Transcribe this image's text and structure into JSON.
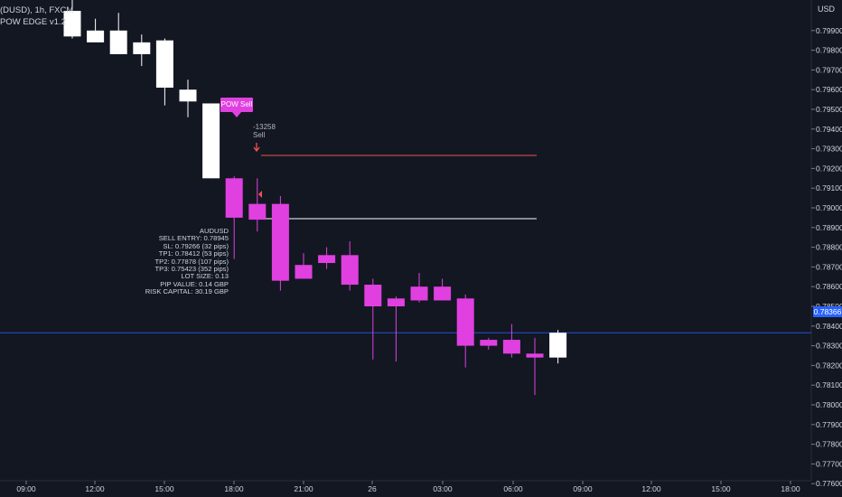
{
  "header": {
    "symbol_line": "(DUSD), 1h, FXCM",
    "indicator_line": "POW EDGE v1.2"
  },
  "currency_label": "USD",
  "price_axis": {
    "ticks": [
      "0.79900",
      "0.79800",
      "0.79700",
      "0.79600",
      "0.79500",
      "0.79400",
      "0.79300",
      "0.79200",
      "0.79100",
      "0.79000",
      "0.78900",
      "0.78800",
      "0.78700",
      "0.78600",
      "0.78500",
      "0.78400",
      "0.78300",
      "0.78200",
      "0.78100",
      "0.78000",
      "0.77900",
      "0.77800",
      "0.77700",
      "0.77600"
    ],
    "current_price": "0.78366"
  },
  "time_axis": {
    "labels": [
      "09:00",
      "12:00",
      "15:00",
      "18:00",
      "21:00",
      "26",
      "03:00",
      "06:00",
      "09:00",
      "12:00",
      "15:00",
      "18:00"
    ]
  },
  "signal": {
    "label": "POW Sell",
    "id_text": "-13258",
    "side_text": "Sell"
  },
  "info_box": [
    "AUDUSD",
    "SELL ENTRY: 0.78945",
    "SL: 0.79266 (32 pips)",
    "TP1: 0.78412 (53 pips)",
    "TP2: 0.77878 (107 pips)",
    "TP3: 0.75423 (352 pips)",
    "LOT SIZE: 0.13",
    "PIP VALUE: 0.14 GBP",
    "RISK CAPITAL: 30.19 GBP"
  ],
  "colors": {
    "background": "#131722",
    "bear_candle": "#e040e0",
    "bull_candle": "#ffffff",
    "price_line": "#2962ff",
    "sl_line": "#ef5350",
    "entry_line": "#ffffff",
    "text": "#d1d4dc"
  },
  "chart_data": {
    "type": "candlestick",
    "y_range": [
      0.7753,
      0.8002
    ],
    "x_labels": [
      "09:00",
      "12:00",
      "15:00",
      "18:00",
      "21:00",
      "26",
      "03:00",
      "06:00",
      "09:00",
      "12:00",
      "15:00",
      "18:00"
    ],
    "candles": [
      {
        "o": 0.8,
        "h": 0.801,
        "l": 0.7986,
        "c": 0.7987,
        "style": "bull"
      },
      {
        "o": 0.799,
        "h": 0.7996,
        "l": 0.7986,
        "c": 0.7984,
        "style": "bull"
      },
      {
        "o": 0.799,
        "h": 0.7999,
        "l": 0.7978,
        "c": 0.7978,
        "style": "bull"
      },
      {
        "o": 0.7984,
        "h": 0.7988,
        "l": 0.7972,
        "c": 0.7978,
        "style": "bull"
      },
      {
        "o": 0.7985,
        "h": 0.7986,
        "l": 0.7952,
        "c": 0.7961,
        "style": "bull"
      },
      {
        "o": 0.796,
        "h": 0.7965,
        "l": 0.7946,
        "c": 0.7954,
        "style": "bull"
      },
      {
        "o": 0.7953,
        "h": 0.7953,
        "l": 0.7915,
        "c": 0.7915,
        "style": "bull"
      },
      {
        "o": 0.7915,
        "h": 0.7916,
        "l": 0.7874,
        "c": 0.7895,
        "style": "bear"
      },
      {
        "o": 0.7902,
        "h": 0.7915,
        "l": 0.7888,
        "c": 0.7894,
        "style": "bear"
      },
      {
        "o": 0.7902,
        "h": 0.7906,
        "l": 0.7858,
        "c": 0.7863,
        "style": "bear"
      },
      {
        "o": 0.7871,
        "h": 0.7877,
        "l": 0.7864,
        "c": 0.7864,
        "style": "bear"
      },
      {
        "o": 0.7876,
        "h": 0.788,
        "l": 0.7869,
        "c": 0.7872,
        "style": "bear"
      },
      {
        "o": 0.7876,
        "h": 0.7883,
        "l": 0.7858,
        "c": 0.7861,
        "style": "bear"
      },
      {
        "o": 0.7861,
        "h": 0.7864,
        "l": 0.7823,
        "c": 0.785,
        "style": "bear"
      },
      {
        "o": 0.7854,
        "h": 0.7855,
        "l": 0.7822,
        "c": 0.785,
        "style": "bear"
      },
      {
        "o": 0.7853,
        "h": 0.7867,
        "l": 0.7852,
        "c": 0.786,
        "style": "bear"
      },
      {
        "o": 0.786,
        "h": 0.7864,
        "l": 0.7853,
        "c": 0.7853,
        "style": "bear"
      },
      {
        "o": 0.7854,
        "h": 0.7856,
        "l": 0.7819,
        "c": 0.783,
        "style": "bear"
      },
      {
        "o": 0.7833,
        "h": 0.7834,
        "l": 0.7828,
        "c": 0.783,
        "style": "bear"
      },
      {
        "o": 0.7833,
        "h": 0.7841,
        "l": 0.7824,
        "c": 0.7826,
        "style": "bear"
      },
      {
        "o": 0.7826,
        "h": 0.7834,
        "l": 0.7805,
        "c": 0.7824,
        "style": "bear"
      },
      {
        "o": 0.7824,
        "h": 0.7838,
        "l": 0.7821,
        "c": 0.78366,
        "style": "bull"
      }
    ]
  }
}
